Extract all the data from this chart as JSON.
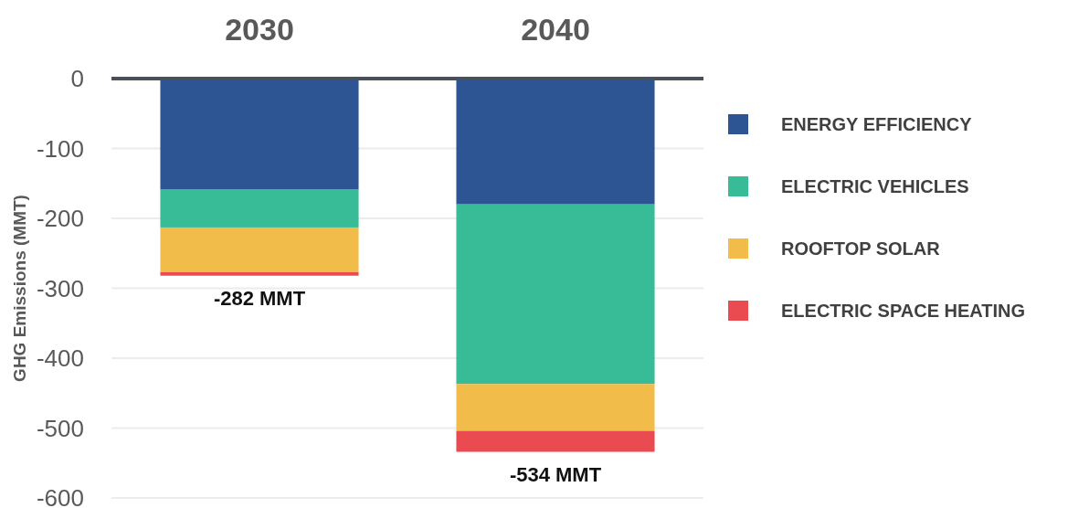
{
  "chart_data": {
    "type": "bar",
    "stacked": true,
    "categories": [
      "2030",
      "2040"
    ],
    "ylabel": "GHG Emissions (MMT)",
    "series": [
      {
        "name": "ENERGY EFFICIENCY",
        "color": "#2e5593",
        "values": [
          -159,
          -180
        ]
      },
      {
        "name": "ELECTRIC VEHICLES",
        "color": "#38bb97",
        "values": [
          -54,
          -257
        ]
      },
      {
        "name": "ROOFTOP SOLAR",
        "color": "#f2bc4a",
        "values": [
          -64,
          -67
        ]
      },
      {
        "name": "ELECTRIC SPACE HEATING",
        "color": "#e94b51",
        "values": [
          -5,
          -30
        ]
      }
    ],
    "totals": [
      "-282 MMT",
      "-534 MMT"
    ],
    "ylim": [
      -600,
      0
    ],
    "yticks": [
      0,
      -100,
      -200,
      -300,
      -400,
      -500,
      -600
    ],
    "grid": "y",
    "legend": "right"
  }
}
